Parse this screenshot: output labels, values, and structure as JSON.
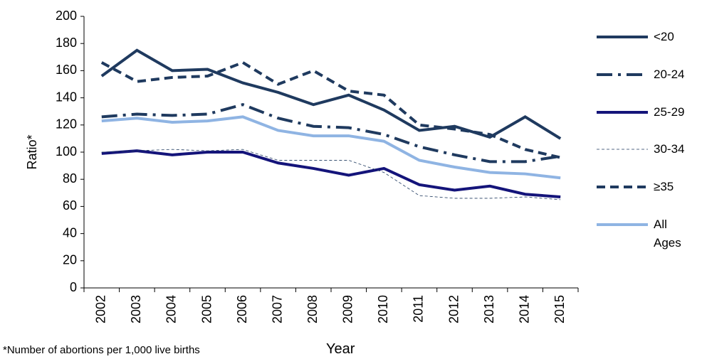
{
  "chart_data": {
    "type": "line",
    "y_label": "Ratio*",
    "x_label": "Year",
    "footnote": "*Number of abortions per 1,000 live births",
    "categories": [
      "2002",
      "2003",
      "2004",
      "2005",
      "2006",
      "2007",
      "2008",
      "2009",
      "2010",
      "2011",
      "2012",
      "2013",
      "2014",
      "2015"
    ],
    "ylim": [
      0,
      200
    ],
    "yticks": [
      0,
      20,
      40,
      60,
      80,
      100,
      120,
      140,
      160,
      180,
      200
    ],
    "series": [
      {
        "name": "<20",
        "color": "#1f3a5f",
        "width": 4,
        "dash": "none",
        "values": [
          156,
          175,
          160,
          161,
          151,
          144,
          135,
          142,
          131,
          116,
          119,
          111,
          126,
          110
        ]
      },
      {
        "name": "20-24",
        "color": "#1f3a5f",
        "width": 4,
        "dash": "22,8,4,8",
        "values": [
          126,
          128,
          127,
          128,
          135,
          125,
          119,
          118,
          113,
          104,
          98,
          93,
          93,
          97
        ]
      },
      {
        "name": "25-29",
        "color": "#14147a",
        "width": 4,
        "dash": "none",
        "values": [
          99,
          101,
          98,
          100,
          100,
          92,
          88,
          83,
          88,
          76,
          72,
          75,
          69,
          67
        ]
      },
      {
        "name": "30-34",
        "color": "#1f3a5f",
        "width": 0.8,
        "dash": "4,3",
        "values": [
          100,
          101,
          102,
          101,
          102,
          94,
          94,
          94,
          85,
          68,
          66,
          66,
          67,
          65
        ]
      },
      {
        "name": "≥35",
        "color": "#1f3a5f",
        "width": 4,
        "dash": "12,7",
        "values": [
          166,
          152,
          155,
          156,
          166,
          150,
          160,
          145,
          142,
          120,
          117,
          113,
          102,
          96
        ]
      },
      {
        "name": "All Ages",
        "color": "#8fb4e3",
        "width": 4,
        "dash": "none",
        "values": [
          123,
          125,
          122,
          123,
          126,
          116,
          112,
          112,
          108,
          94,
          89,
          85,
          84,
          81
        ]
      }
    ]
  }
}
